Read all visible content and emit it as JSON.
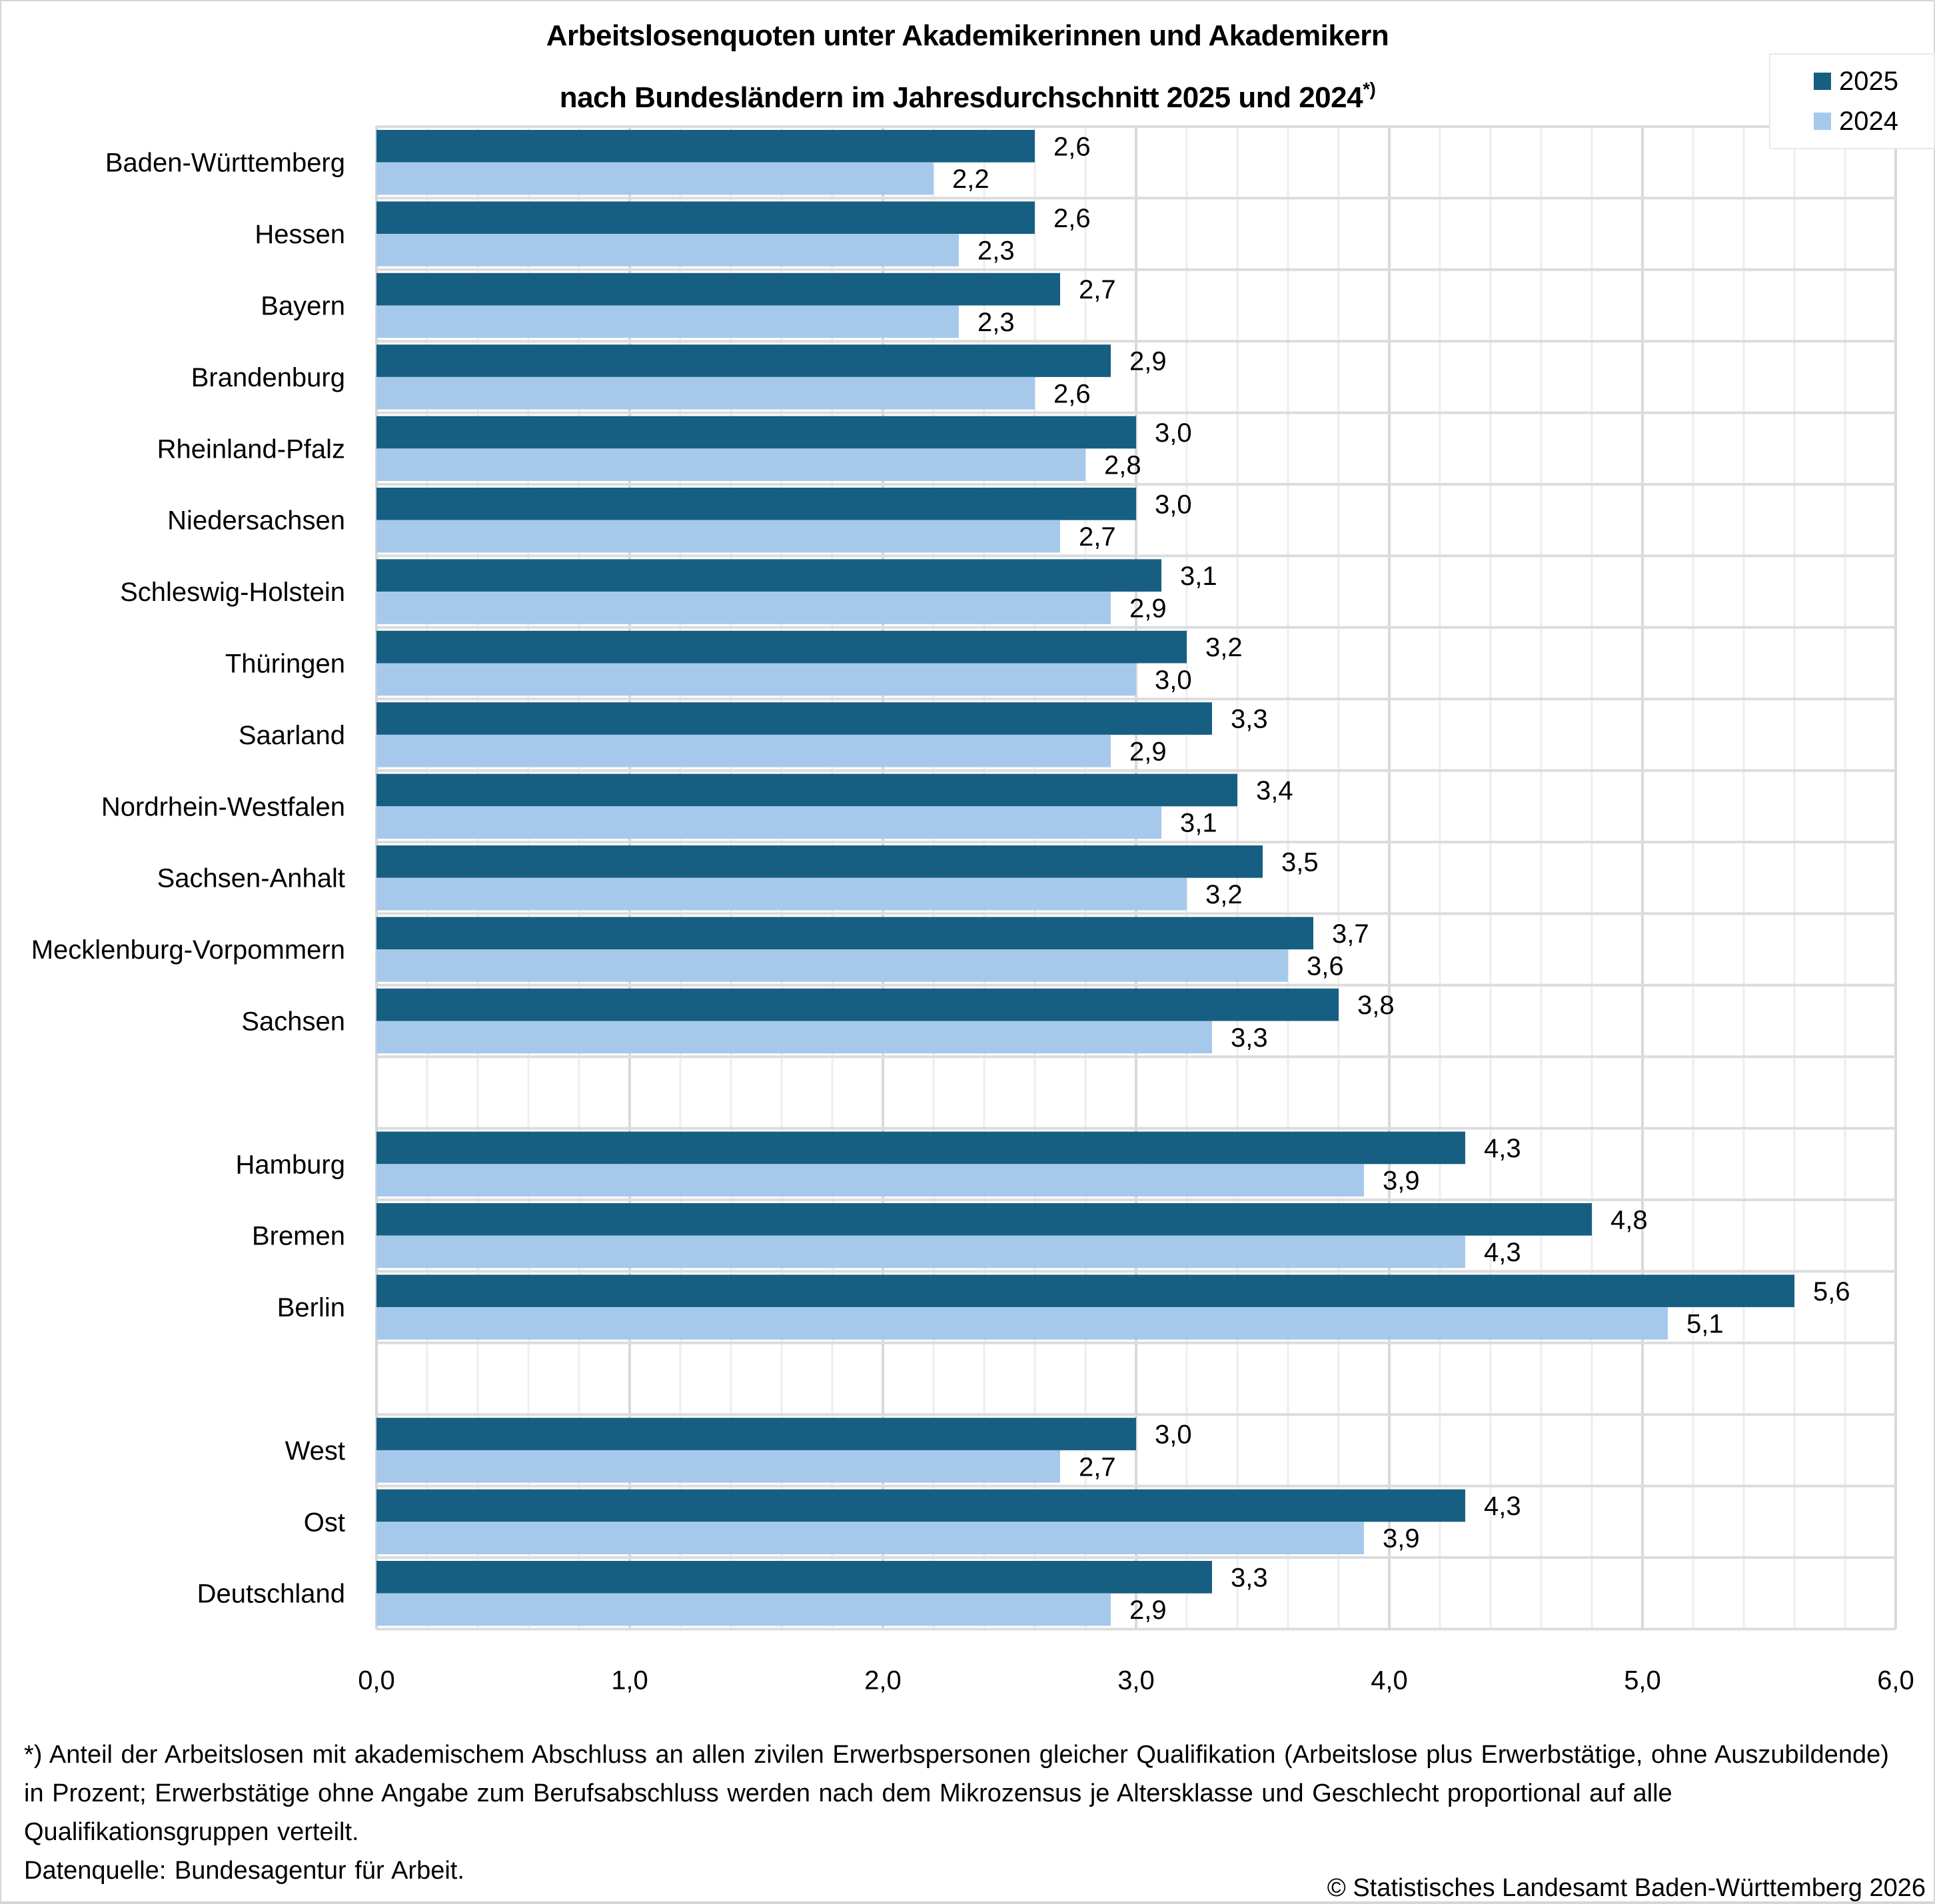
{
  "title": {
    "line1": "Arbeitslosenquoten unter Akademikerinnen und Akademikern",
    "line2": "nach Bundesländern im Jahresdurchschnitt 2025 und 2024",
    "footnote_marker": "*)"
  },
  "legend": {
    "items": [
      {
        "label": "2025",
        "color": "#175f82"
      },
      {
        "label": "2024",
        "color": "#a6c9eb"
      }
    ]
  },
  "footnote": {
    "text": "*) Anteil der Arbeitslosen mit akademischem Abschluss an allen zivilen Erwerbspersonen gleicher Qualifikation (Arbeitslose plus Erwerbstätige, ohne Auszubildende) in Prozent; Erwerbstätige ohne Angabe zum Berufsabschluss werden nach dem Mikrozensus je Altersklasse und Geschlecht proportional auf alle Qualifikationsgruppen verteilt.",
    "source": "Datenquelle: Bundesagentur für Arbeit.",
    "copyright": "© Statistisches Landesamt Baden-Württemberg 2026"
  },
  "chart_data": {
    "type": "bar",
    "orientation": "horizontal",
    "title": "Arbeitslosenquoten unter Akademikerinnen und Akademikern nach Bundesländern im Jahresdurchschnitt 2025 und 2024*)",
    "xlabel": "",
    "ylabel": "",
    "xlim": [
      0,
      6
    ],
    "x_ticks": [
      "0,0",
      "1,0",
      "2,0",
      "3,0",
      "4,0",
      "5,0",
      "6,0"
    ],
    "x_tick_values": [
      0,
      1,
      2,
      3,
      4,
      5,
      6
    ],
    "minor_grid_step": 0.2,
    "grid": true,
    "legend_position": "top-right",
    "decimal_separator": ",",
    "groups": [
      [
        "Baden-Württemberg",
        "Hessen",
        "Bayern",
        "Brandenburg",
        "Rheinland-Pfalz",
        "Niedersachsen",
        "Schleswig-Holstein",
        "Thüringen",
        "Saarland",
        "Nordrhein-Westfalen",
        "Sachsen-Anhalt",
        "Mecklenburg-Vorpommern",
        "Sachsen"
      ],
      [
        "Hamburg",
        "Bremen",
        "Berlin"
      ],
      [
        "West",
        "Ost",
        "Deutschland"
      ]
    ],
    "categories": [
      "Baden-Württemberg",
      "Hessen",
      "Bayern",
      "Brandenburg",
      "Rheinland-Pfalz",
      "Niedersachsen",
      "Schleswig-Holstein",
      "Thüringen",
      "Saarland",
      "Nordrhein-Westfalen",
      "Sachsen-Anhalt",
      "Mecklenburg-Vorpommern",
      "Sachsen",
      "Hamburg",
      "Bremen",
      "Berlin",
      "West",
      "Ost",
      "Deutschland"
    ],
    "series": [
      {
        "name": "2025",
        "color": "#175f82",
        "values": [
          2.6,
          2.6,
          2.7,
          2.9,
          3.0,
          3.0,
          3.1,
          3.2,
          3.3,
          3.4,
          3.5,
          3.7,
          3.8,
          4.3,
          4.8,
          5.6,
          3.0,
          4.3,
          3.3
        ]
      },
      {
        "name": "2024",
        "color": "#a6c9eb",
        "values": [
          2.2,
          2.3,
          2.3,
          2.6,
          2.8,
          2.7,
          2.9,
          3.0,
          2.9,
          3.1,
          3.2,
          3.6,
          3.3,
          3.9,
          4.3,
          5.1,
          2.7,
          3.9,
          2.9
        ]
      }
    ]
  }
}
